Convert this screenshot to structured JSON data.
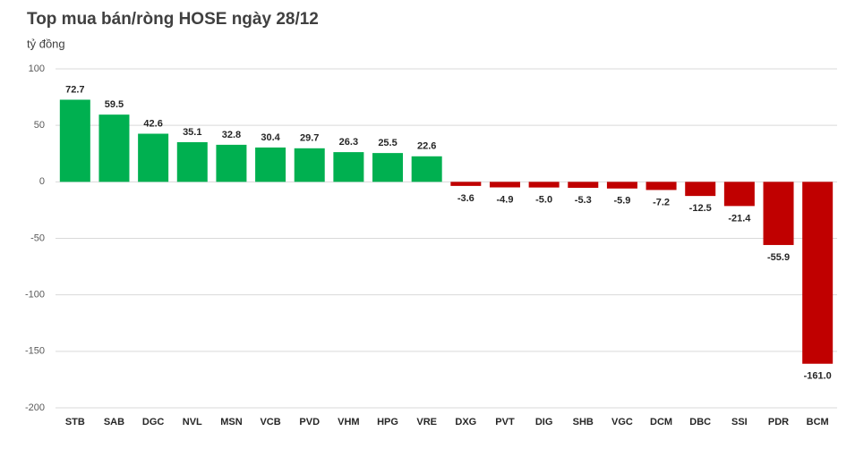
{
  "chart_data": {
    "type": "bar",
    "title": "Top mua bán/ròng HOSE ngày 28/12",
    "y_label": "tỷ đồng",
    "categories": [
      "STB",
      "SAB",
      "DGC",
      "NVL",
      "MSN",
      "VCB",
      "PVD",
      "VHM",
      "HPG",
      "VRE",
      "DXG",
      "PVT",
      "DIG",
      "SHB",
      "VGC",
      "DCM",
      "DBC",
      "SSI",
      "PDR",
      "BCM"
    ],
    "values": [
      72.7,
      59.5,
      42.6,
      35.1,
      32.8,
      30.4,
      29.7,
      26.3,
      25.5,
      22.6,
      -3.6,
      -4.9,
      -5.0,
      -5.3,
      -5.9,
      -7.2,
      -12.5,
      -21.4,
      -55.9,
      -161.0
    ],
    "value_labels": [
      "72.7",
      "59.5",
      "42.6",
      "35.1",
      "32.8",
      "30.4",
      "29.7",
      "26.3",
      "25.5",
      "22.6",
      "-3.6",
      "-4.9",
      "-5.0",
      "-5.3",
      "-5.9",
      "-7.2",
      "-12.5",
      "-21.4",
      "-55.9",
      "-161.0"
    ],
    "positive_color": "#00b050",
    "negative_color": "#c00000",
    "ylim": [
      -200,
      100
    ],
    "yticks": [
      100,
      50,
      0,
      -50,
      -100,
      -150,
      -200
    ],
    "grid": true
  }
}
